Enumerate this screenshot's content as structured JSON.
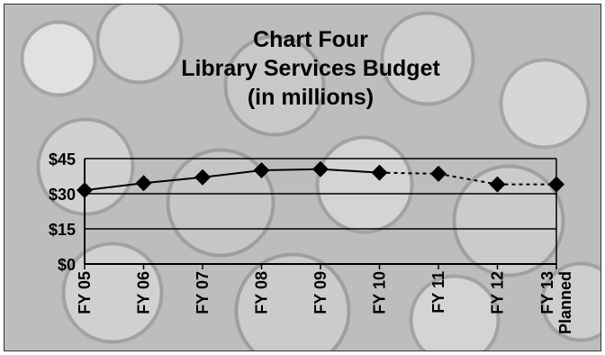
{
  "chart_data": {
    "type": "line",
    "title_lines": [
      "Chart Four",
      "Library Services Budget",
      "(in millions)"
    ],
    "categories": [
      "FY 05",
      "FY 06",
      "FY 07",
      "FY 08",
      "FY 09",
      "FY 10",
      "FY 11",
      "FY 12",
      "FY 13 Planned"
    ],
    "category_label_lines": [
      [
        "FY 05"
      ],
      [
        "FY 06"
      ],
      [
        "FY 07"
      ],
      [
        "FY 08"
      ],
      [
        "FY 09"
      ],
      [
        "FY 10"
      ],
      [
        "FY 11"
      ],
      [
        "FY 12"
      ],
      [
        "FY 13",
        "Planned"
      ]
    ],
    "series": [
      {
        "values": [
          31.5,
          34.5,
          37,
          40,
          40.5,
          39,
          38.5,
          34,
          34
        ],
        "line_style_by_segment": [
          "solid",
          "solid",
          "solid",
          "solid",
          "solid",
          "dashed",
          "dashed",
          "dashed"
        ]
      }
    ],
    "ylim": [
      0,
      45
    ],
    "yticks": [
      0,
      15,
      30,
      45
    ],
    "ytick_labels": [
      "$0",
      "$15",
      "$30",
      "$45"
    ],
    "grid": true,
    "xlabel": "",
    "ylabel": ""
  }
}
